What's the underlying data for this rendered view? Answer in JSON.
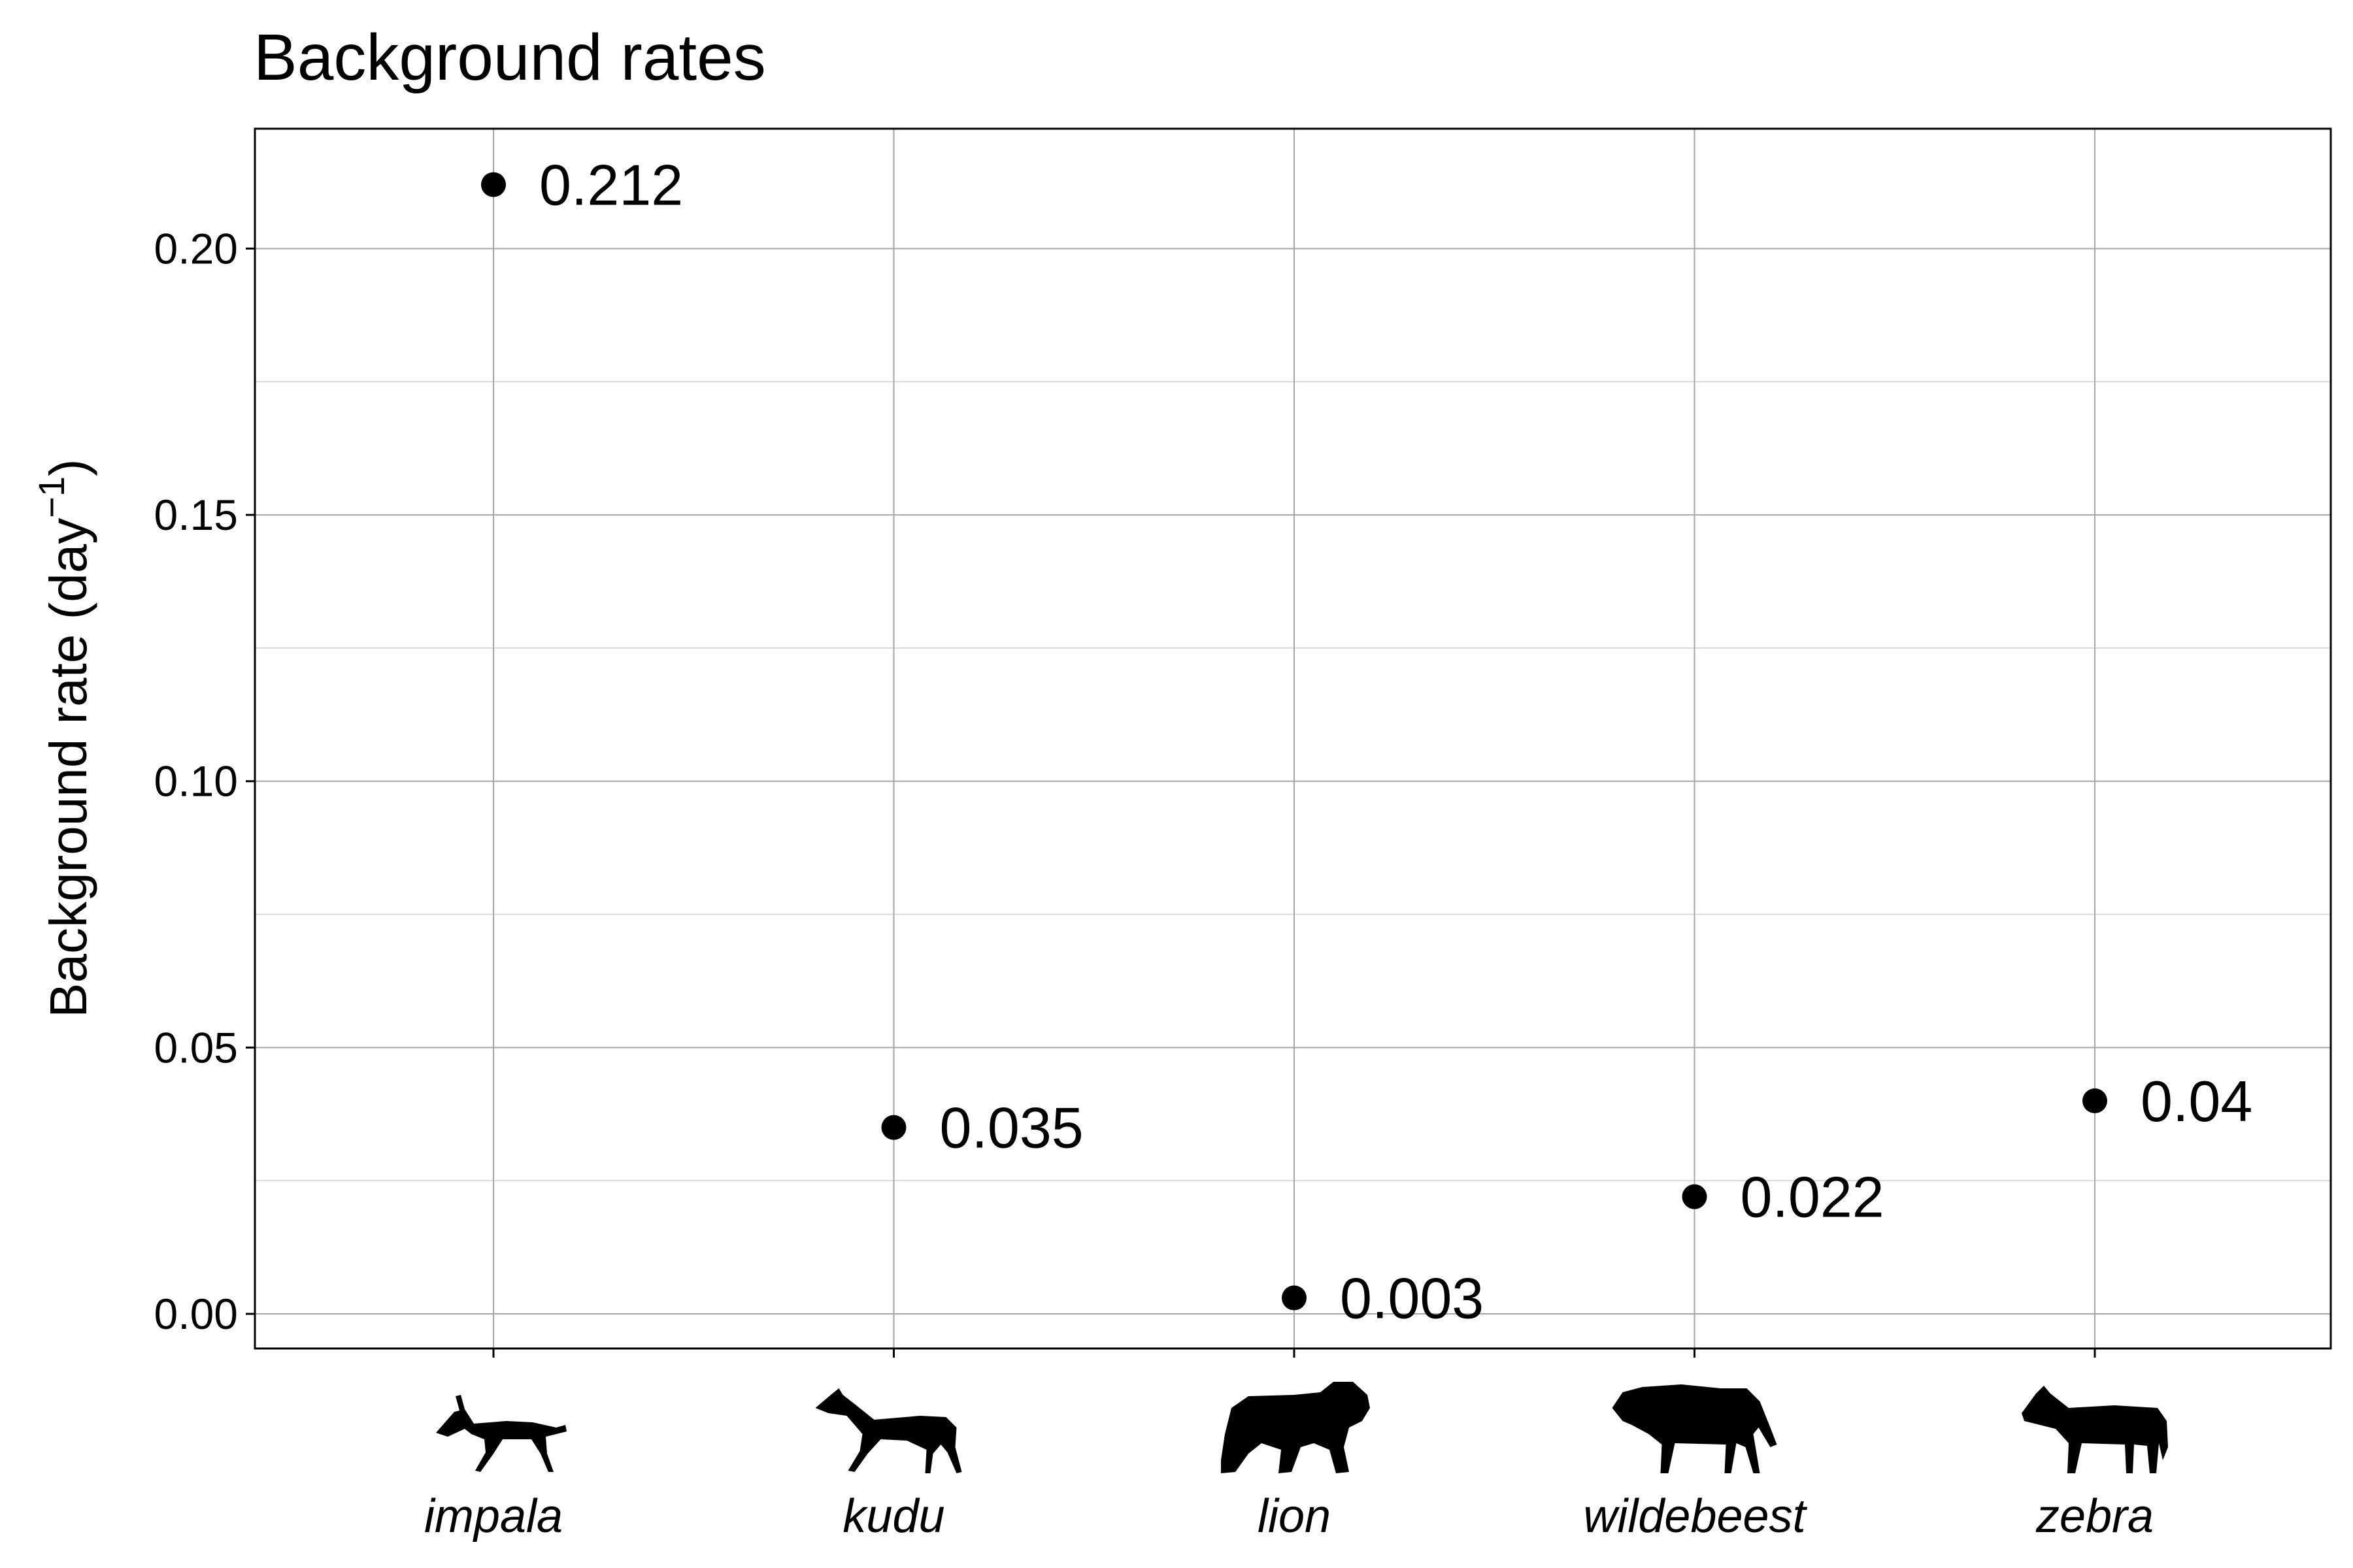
{
  "chart_data": {
    "type": "scatter",
    "title": "Background rates",
    "ylabel": "Background rate (day",
    "ylabel_sup": "−1",
    "ylabel_close": ")",
    "xlabel": "",
    "categories": [
      "impala",
      "kudu",
      "lion",
      "wildebeest",
      "zebra"
    ],
    "icons": [
      "impala-silhouette-icon",
      "kudu-silhouette-icon",
      "lion-silhouette-icon",
      "wildebeest-silhouette-icon",
      "zebra-silhouette-icon"
    ],
    "values": [
      0.212,
      0.035,
      0.003,
      0.022,
      0.04
    ],
    "data_labels": [
      "0.212",
      "0.035",
      "0.003",
      "0.022",
      "0.04"
    ],
    "ylim": [
      -0.0065,
      0.2225
    ],
    "yticks": [
      0.0,
      0.05,
      0.1,
      0.15,
      0.2
    ],
    "ytick_labels": [
      "0.00",
      "0.05",
      "0.10",
      "0.15",
      "0.20"
    ],
    "grid": true,
    "point_color": "#000000"
  }
}
